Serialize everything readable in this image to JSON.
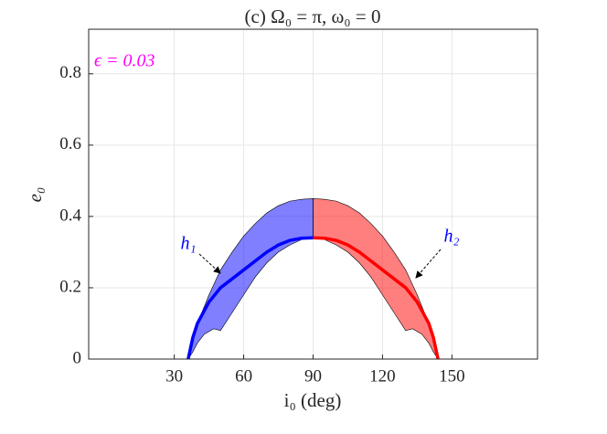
{
  "chart_data": {
    "type": "region-line",
    "title": "(c) Ω₀ = π, ω₀ = 0",
    "xlabel": "i₀ (deg)",
    "ylabel": "e₀",
    "annotations": [
      {
        "text": "ϵ = 0.03",
        "color": "#ff00ff"
      },
      {
        "text": "h₁",
        "color": "#0000ff"
      },
      {
        "text": "h₂",
        "color": "#0000ff"
      }
    ],
    "xlim": [
      -7,
      187
    ],
    "ylim": [
      0,
      0.925
    ],
    "xticks": [
      30,
      60,
      90,
      120,
      150
    ],
    "yticks": [
      0,
      0.2,
      0.4,
      0.6,
      0.8
    ],
    "grid": true,
    "regions": [
      {
        "color": "#0000ff",
        "x": [
          36,
          40,
          45,
          50,
          55,
          60,
          65,
          70,
          75,
          80,
          85,
          90,
          90,
          85,
          80,
          75,
          70,
          65,
          60,
          55,
          50,
          47,
          43,
          40,
          38,
          36
        ],
        "y": [
          0,
          0.1,
          0.18,
          0.25,
          0.3,
          0.345,
          0.38,
          0.41,
          0.43,
          0.443,
          0.448,
          0.45,
          0.34,
          0.335,
          0.32,
          0.3,
          0.27,
          0.23,
          0.18,
          0.13,
          0.08,
          0.085,
          0.07,
          0.045,
          0.02,
          0
        ]
      },
      {
        "color": "#ff0000",
        "x": [
          144,
          140,
          135,
          130,
          125,
          120,
          115,
          110,
          105,
          100,
          95,
          90,
          90,
          95,
          100,
          105,
          110,
          115,
          120,
          125,
          130,
          133,
          137,
          140,
          142,
          144
        ],
        "y": [
          0,
          0.1,
          0.18,
          0.25,
          0.3,
          0.345,
          0.38,
          0.41,
          0.43,
          0.443,
          0.448,
          0.45,
          0.34,
          0.335,
          0.32,
          0.3,
          0.27,
          0.23,
          0.18,
          0.13,
          0.08,
          0.085,
          0.07,
          0.045,
          0.02,
          0
        ]
      }
    ],
    "series": [
      {
        "color": "#0000ff",
        "x": [
          36,
          38,
          40,
          45,
          50,
          55,
          60,
          65,
          70,
          75,
          80,
          85,
          90
        ],
        "values": [
          0,
          0.06,
          0.1,
          0.16,
          0.2,
          0.225,
          0.25,
          0.275,
          0.3,
          0.32,
          0.333,
          0.339,
          0.34
        ]
      },
      {
        "color": "#ff0000",
        "x": [
          90,
          95,
          100,
          105,
          110,
          115,
          120,
          125,
          130,
          135,
          140,
          142,
          144
        ],
        "values": [
          0.34,
          0.339,
          0.333,
          0.32,
          0.3,
          0.275,
          0.25,
          0.225,
          0.2,
          0.16,
          0.1,
          0.06,
          0
        ]
      }
    ]
  }
}
